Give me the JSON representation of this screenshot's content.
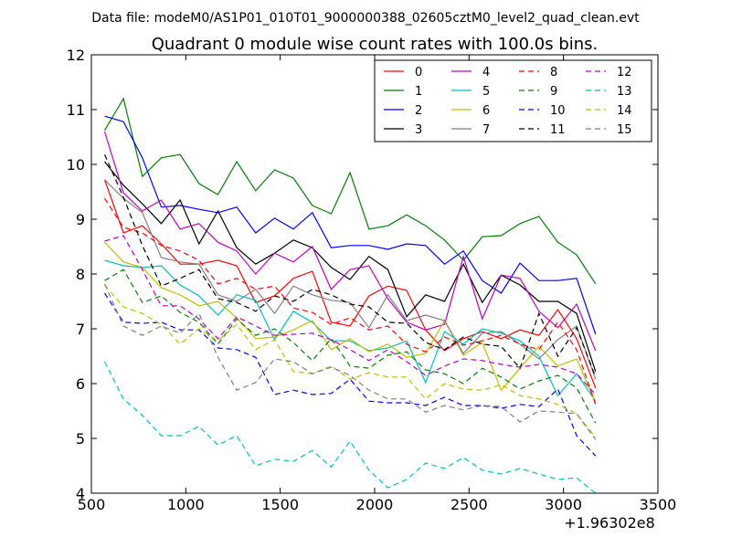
{
  "page": {
    "suptitle": "Data file: modeM0/AS1P01_010T01_9000000388_02605cztM0_level2_quad_clean.evt"
  },
  "chart_data": {
    "type": "line",
    "title": "Quadrant 0 module wise count rates with 100.0s bins.",
    "xlabel": "",
    "ylabel": "",
    "xlim": [
      500,
      3500
    ],
    "ylim": [
      4,
      12
    ],
    "x_offset_label": "+1.96302e8",
    "xticks": [
      500,
      1000,
      1500,
      2000,
      2500,
      3000,
      3500
    ],
    "yticks": [
      4,
      5,
      6,
      7,
      8,
      9,
      10,
      11,
      12
    ],
    "x": [
      570,
      670,
      770,
      870,
      970,
      1070,
      1170,
      1270,
      1370,
      1470,
      1570,
      1670,
      1770,
      1870,
      1970,
      2070,
      2170,
      2270,
      2370,
      2470,
      2570,
      2670,
      2770,
      2870,
      2970,
      3070,
      3170
    ],
    "legend": {
      "position": "top-right",
      "columns": 4
    },
    "series": [
      {
        "name": "0",
        "color": "#ff0000",
        "dash": "solid",
        "values": [
          9.72,
          8.75,
          8.88,
          8.55,
          8.18,
          8.18,
          8.25,
          8.15,
          7.48,
          7.6,
          7.92,
          8.05,
          7.12,
          7.05,
          7.6,
          7.78,
          7.7,
          6.98,
          6.6,
          6.82,
          6.95,
          6.82,
          6.98,
          6.88,
          7.35,
          6.82,
          5.92
        ]
      },
      {
        "name": "1",
        "color": "#008000",
        "dash": "solid",
        "values": [
          10.62,
          11.2,
          9.78,
          10.12,
          10.18,
          9.65,
          9.45,
          10.05,
          9.52,
          9.9,
          9.75,
          9.25,
          9.1,
          9.85,
          8.82,
          8.88,
          9.08,
          8.88,
          8.62,
          8.25,
          8.68,
          8.7,
          8.92,
          9.05,
          8.58,
          8.35,
          7.82
        ]
      },
      {
        "name": "2",
        "color": "#0000ff",
        "dash": "solid",
        "values": [
          10.88,
          10.78,
          10.12,
          9.22,
          9.25,
          9.18,
          9.12,
          9.22,
          8.75,
          9.02,
          8.82,
          9.12,
          8.48,
          8.52,
          8.52,
          8.45,
          8.55,
          8.52,
          8.18,
          8.42,
          7.88,
          7.65,
          8.2,
          7.88,
          7.88,
          7.92,
          6.9
        ]
      },
      {
        "name": "3",
        "color": "#000000",
        "dash": "solid",
        "values": [
          10.05,
          9.62,
          9.28,
          8.92,
          9.35,
          8.55,
          9.15,
          8.48,
          8.18,
          8.38,
          8.62,
          8.48,
          8.12,
          7.9,
          8.32,
          8.08,
          7.22,
          7.62,
          7.5,
          8.18,
          7.48,
          7.98,
          7.8,
          7.5,
          7.5,
          7.28,
          6.22
        ]
      },
      {
        "name": "4",
        "color": "#bf00bf",
        "dash": "solid",
        "values": [
          10.6,
          9.48,
          9.15,
          9.35,
          8.82,
          8.92,
          8.58,
          8.42,
          8.0,
          8.38,
          8.22,
          8.5,
          7.72,
          8.08,
          8.15,
          7.55,
          7.12,
          6.98,
          7.08,
          8.32,
          7.18,
          7.98,
          7.92,
          7.32,
          7.02,
          7.45,
          6.6
        ]
      },
      {
        "name": "5",
        "color": "#00bfbf",
        "dash": "solid",
        "values": [
          8.25,
          8.15,
          8.12,
          8.15,
          7.8,
          7.6,
          7.25,
          7.62,
          7.52,
          6.8,
          7.32,
          7.12,
          6.78,
          6.78,
          6.6,
          6.65,
          6.78,
          6.02,
          6.95,
          6.72,
          7.0,
          6.92,
          6.78,
          6.5,
          5.78,
          6.18,
          5.68
        ]
      },
      {
        "name": "6",
        "color": "#bfbf00",
        "dash": "solid",
        "values": [
          8.58,
          8.22,
          8.12,
          7.75,
          7.62,
          7.42,
          7.5,
          7.2,
          6.82,
          6.85,
          6.98,
          7.15,
          6.62,
          6.82,
          6.58,
          6.72,
          6.48,
          6.55,
          7.15,
          6.52,
          6.75,
          5.88,
          6.28,
          6.68,
          6.32,
          6.45,
          5.65
        ]
      },
      {
        "name": "7",
        "color": "#808080",
        "dash": "solid",
        "values": [
          9.72,
          9.38,
          9.12,
          8.3,
          8.22,
          8.18,
          7.62,
          7.5,
          7.72,
          7.28,
          7.78,
          7.62,
          7.52,
          7.48,
          7.02,
          7.62,
          7.15,
          7.25,
          7.15,
          6.55,
          6.92,
          6.95,
          6.72,
          6.45,
          6.8,
          7.05,
          6.08
        ]
      },
      {
        "name": "8",
        "color": "#ff0000",
        "dash": "dashed",
        "values": [
          9.38,
          8.85,
          8.75,
          8.52,
          8.42,
          8.25,
          7.82,
          7.92,
          7.72,
          7.78,
          7.38,
          7.3,
          7.08,
          7.2,
          6.98,
          7.05,
          6.72,
          6.58,
          6.85,
          6.7,
          6.78,
          6.88,
          6.72,
          6.62,
          7.12,
          6.62,
          5.62
        ]
      },
      {
        "name": "9",
        "color": "#008000",
        "dash": "dashed",
        "values": [
          7.88,
          8.08,
          7.48,
          7.6,
          7.3,
          7.12,
          6.72,
          7.18,
          6.88,
          7.0,
          6.75,
          6.42,
          6.82,
          6.32,
          6.28,
          6.52,
          6.58,
          6.25,
          6.18,
          6.0,
          6.28,
          6.12,
          5.9,
          6.05,
          6.15,
          5.92,
          5.28
        ]
      },
      {
        "name": "10",
        "color": "#0000ff",
        "dash": "dashed",
        "values": [
          7.65,
          7.12,
          7.1,
          7.12,
          6.98,
          6.98,
          6.65,
          6.62,
          6.48,
          5.8,
          5.88,
          5.8,
          5.82,
          6.08,
          5.68,
          5.65,
          5.65,
          5.6,
          5.75,
          5.6,
          5.6,
          5.55,
          5.62,
          5.58,
          5.9,
          5.05,
          4.68
        ]
      },
      {
        "name": "11",
        "color": "#000000",
        "dash": "dashed",
        "values": [
          10.18,
          9.4,
          8.52,
          7.78,
          7.92,
          8.08,
          7.55,
          7.48,
          7.32,
          7.6,
          7.5,
          7.72,
          7.62,
          7.45,
          7.4,
          7.12,
          7.1,
          6.75,
          6.62,
          6.85,
          6.72,
          6.68,
          6.28,
          7.28,
          6.5,
          7.02,
          6.12
        ]
      },
      {
        "name": "12",
        "color": "#bf00bf",
        "dash": "dashed",
        "values": [
          8.6,
          8.7,
          8.08,
          7.42,
          7.42,
          7.18,
          6.82,
          7.22,
          7.05,
          6.88,
          6.9,
          6.92,
          6.8,
          6.62,
          6.42,
          6.62,
          6.4,
          6.15,
          6.32,
          6.45,
          6.42,
          6.35,
          6.3,
          6.35,
          6.3,
          6.18,
          5.8
        ]
      },
      {
        "name": "13",
        "color": "#00bfbf",
        "dash": "dashed",
        "values": [
          6.4,
          5.72,
          5.42,
          5.05,
          5.05,
          5.22,
          4.88,
          5.05,
          4.5,
          4.62,
          4.58,
          4.78,
          4.48,
          4.95,
          4.42,
          4.1,
          4.25,
          4.55,
          4.45,
          4.65,
          4.42,
          4.35,
          4.45,
          4.35,
          4.25,
          4.28,
          4.0
        ]
      },
      {
        "name": "14",
        "color": "#bfbf00",
        "dash": "dashed",
        "values": [
          7.8,
          7.4,
          7.28,
          7.08,
          6.72,
          7.0,
          6.78,
          7.08,
          6.62,
          6.8,
          6.22,
          6.18,
          6.32,
          6.08,
          6.2,
          6.12,
          6.12,
          5.72,
          6.0,
          5.9,
          5.88,
          5.98,
          5.78,
          5.72,
          5.62,
          5.45,
          5.02
        ]
      },
      {
        "name": "15",
        "color": "#808080",
        "dash": "dashed",
        "values": [
          7.82,
          7.05,
          6.88,
          7.05,
          6.92,
          7.28,
          6.48,
          5.88,
          6.02,
          6.45,
          6.4,
          6.18,
          6.3,
          6.15,
          5.88,
          5.72,
          5.72,
          5.48,
          5.6,
          5.52,
          5.6,
          5.58,
          5.3,
          5.5,
          5.48,
          5.45,
          4.98
        ]
      }
    ]
  }
}
